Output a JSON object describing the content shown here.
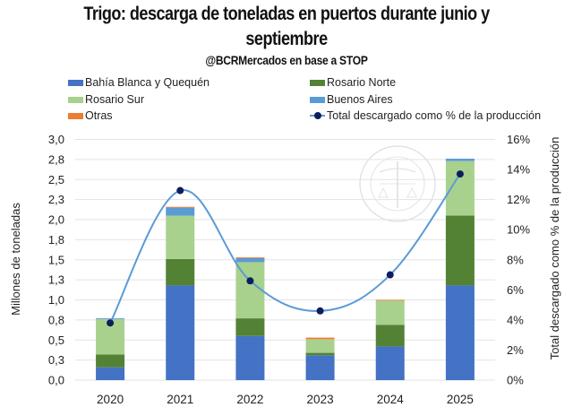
{
  "chart_data": {
    "type": "bar",
    "stacked": true,
    "title": "Trigo: descarga de toneladas en puertos durante junio y septiembre",
    "title_line1": "Trigo: descarga de toneladas en puertos durante junio y",
    "title_line2": "septiembre",
    "subtitle": "@BCRMercados en base a STOP",
    "categories": [
      "2020",
      "2021",
      "2022",
      "2023",
      "2024",
      "2025"
    ],
    "series": [
      {
        "name": "Bahía Blanca y Quequén",
        "color": "#4472C4",
        "values": [
          0.16,
          1.18,
          0.55,
          0.31,
          0.42,
          1.18
        ]
      },
      {
        "name": "Rosario Norte",
        "color": "#548235",
        "values": [
          0.16,
          0.33,
          0.22,
          0.03,
          0.27,
          0.87
        ]
      },
      {
        "name": "Rosario Sur",
        "color": "#A9D18E",
        "values": [
          0.44,
          0.54,
          0.7,
          0.17,
          0.3,
          0.68
        ]
      },
      {
        "name": "Buenos Aires",
        "color": "#5B9BD5",
        "values": [
          0.01,
          0.1,
          0.05,
          0.0,
          0.0,
          0.03
        ]
      },
      {
        "name": "Otras",
        "color": "#ED7D31",
        "values": [
          0.0,
          0.01,
          0.01,
          0.02,
          0.01,
          0.0
        ]
      }
    ],
    "line_series": {
      "name": "Total descargado como % de la producción",
      "color": "#5B9BD5",
      "marker_color": "#0B1F5E",
      "axis": "right",
      "values": [
        3.8,
        12.6,
        6.6,
        4.6,
        7.0,
        13.7
      ]
    },
    "ylabel": "Millones de toneladas",
    "ylabel_right": "Total descargado como % de la producción",
    "ylim": [
      0,
      3.0
    ],
    "ylim_right": [
      0,
      16
    ],
    "yticks": [
      0,
      0.25,
      0.5,
      0.75,
      1.0,
      1.25,
      1.5,
      1.75,
      2.0,
      2.25,
      2.5,
      2.75,
      3.0
    ],
    "ytick_labels": [
      "0,0",
      "0,3",
      "0,5",
      "0,8",
      "1,0",
      "1,3",
      "1,5",
      "1,8",
      "2,0",
      "2,3",
      "2,5",
      "2,8",
      "3,0"
    ],
    "yticks_right": [
      0,
      2,
      4,
      6,
      8,
      10,
      12,
      14,
      16
    ],
    "ytick_labels_right": [
      "0%",
      "2%",
      "4%",
      "6%",
      "8%",
      "10%",
      "12%",
      "14%",
      "16%"
    ],
    "grid": true,
    "legend_position": "top",
    "watermark": "BOLSA DE COMERCIO DE ROSARIO"
  }
}
